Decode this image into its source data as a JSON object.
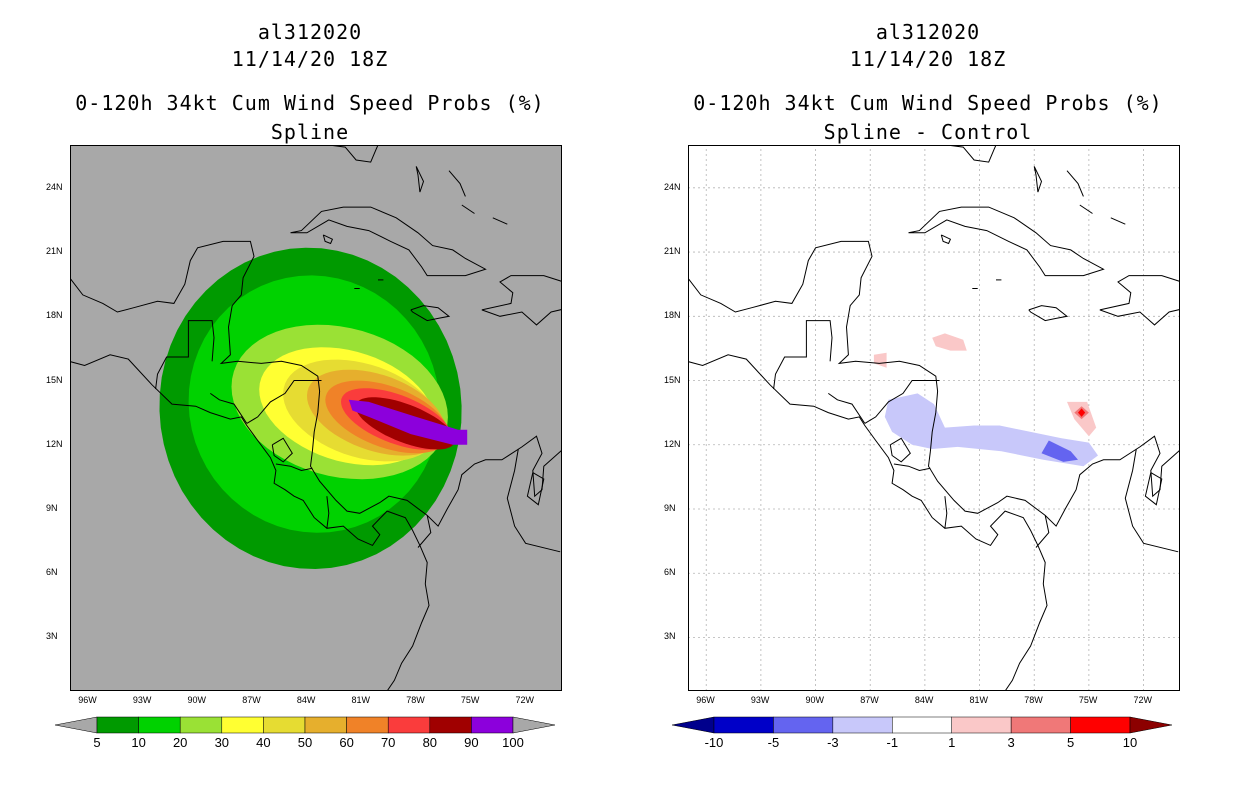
{
  "panels": [
    {
      "title_line1": "al312020",
      "title_line2": "11/14/20 18Z",
      "title_line3": "0-120h 34kt Cum Wind Speed Probs (%)",
      "title_line4": "Spline",
      "background": "#a8a8a8"
    },
    {
      "title_line1": "al312020",
      "title_line2": "11/14/20 18Z",
      "title_line3": "0-120h 34kt Cum Wind Speed Probs (%)",
      "title_line4": "Spline - Control",
      "background": "#ffffff"
    }
  ],
  "chart_data": [
    {
      "type": "heatmap",
      "title": "0-120h 34kt Cum Wind Speed Probs (%) Spline",
      "storm": "al312020",
      "time": "11/14/20 18Z",
      "x_ticks": [
        "96W",
        "93W",
        "90W",
        "87W",
        "84W",
        "81W",
        "78W",
        "75W",
        "72W"
      ],
      "y_ticks": [
        "24N",
        "21N",
        "18N",
        "15N",
        "12N",
        "9N",
        "6N",
        "3N"
      ],
      "xlim": [
        -97,
        -70
      ],
      "ylim": [
        0.5,
        26
      ],
      "levels": [
        5,
        10,
        20,
        30,
        40,
        50,
        60,
        70,
        80,
        90,
        100
      ],
      "colors": [
        "#009a00",
        "#00d200",
        "#9ae135",
        "#ffff32",
        "#e6dc32",
        "#e6af2d",
        "#f08228",
        "#fa3c3c",
        "#a00000",
        "#8c00dc"
      ],
      "end_colors": [
        "#a8a8a8",
        "#a8a8a8"
      ]
    },
    {
      "type": "heatmap",
      "title": "0-120h 34kt Cum Wind Speed Probs (%) Spline - Control",
      "storm": "al312020",
      "time": "11/14/20 18Z",
      "x_ticks": [
        "96W",
        "93W",
        "90W",
        "87W",
        "84W",
        "81W",
        "78W",
        "75W",
        "72W"
      ],
      "y_ticks": [
        "24N",
        "21N",
        "18N",
        "15N",
        "12N",
        "9N",
        "6N",
        "3N"
      ],
      "xlim": [
        -97,
        -70
      ],
      "ylim": [
        0.5,
        26
      ],
      "levels": [
        "-10",
        "-5",
        "-3",
        "-1",
        "1",
        "3",
        "5",
        "10"
      ],
      "colors": [
        "#0000c8",
        "#6464f0",
        "#c8c8fa",
        "#ffffff",
        "#fac8c8",
        "#f07878",
        "#ff0000"
      ],
      "end_colors": [
        "#00008c",
        "#8c0000"
      ]
    }
  ]
}
